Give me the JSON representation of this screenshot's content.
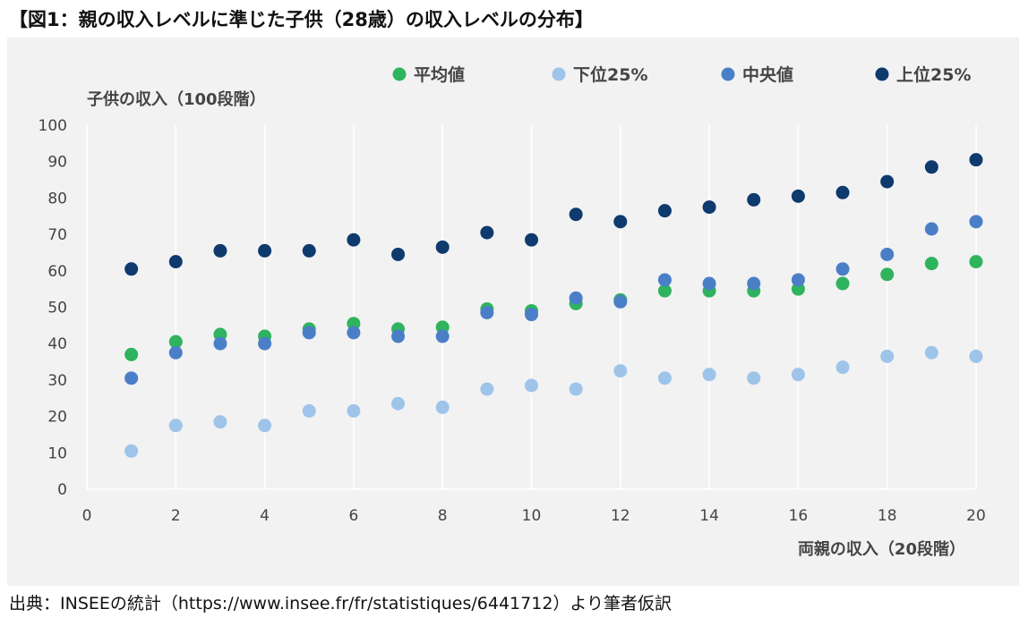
{
  "figure_title": "【図1：親の収入レベルに準じた子供（28歳）の収入レベルの分布】",
  "source": "出典：INSEEの統計（https://www.insee.fr/fr/statistiques/6441712）より筆者仮訳",
  "colors": {
    "mean": "#2fb35e",
    "p25": "#9ec4ea",
    "median": "#4a7fc8",
    "p75": "#0e3a6e",
    "panel_bg": "#f2f2f2",
    "grid": "#ffffff",
    "text": "#444444"
  },
  "chart_data": {
    "type": "scatter",
    "xlabel": "両親の収入（20段階）",
    "ylabel": "子供の収入（100段階）",
    "xlim": [
      0,
      20
    ],
    "ylim": [
      0,
      100
    ],
    "xticks": [
      0,
      2,
      4,
      6,
      8,
      10,
      12,
      14,
      16,
      18,
      20
    ],
    "yticks": [
      0,
      10,
      20,
      30,
      40,
      50,
      60,
      70,
      80,
      90,
      100
    ],
    "grid": "vertical",
    "legend_position": "top",
    "x": [
      1,
      2,
      3,
      4,
      5,
      6,
      7,
      8,
      9,
      10,
      11,
      12,
      13,
      14,
      15,
      16,
      17,
      18,
      19,
      20
    ],
    "series": [
      {
        "key": "mean",
        "name": "平均値",
        "values": [
          37,
          40.5,
          42.5,
          42,
          44,
          45.5,
          44,
          44.5,
          49.5,
          49,
          51,
          52,
          54.5,
          54.5,
          54.5,
          55,
          56.5,
          59,
          62,
          62.5
        ]
      },
      {
        "key": "p25",
        "name": "下位25%",
        "values": [
          10.5,
          17.5,
          18.5,
          17.5,
          21.5,
          21.5,
          23.5,
          22.5,
          27.5,
          28.5,
          27.5,
          32.5,
          30.5,
          31.5,
          30.5,
          31.5,
          33.5,
          36.5,
          37.5,
          36.5
        ]
      },
      {
        "key": "median",
        "name": "中央値",
        "values": [
          30.5,
          37.5,
          40,
          40,
          43,
          43,
          42,
          42,
          48.5,
          48,
          52.5,
          51.5,
          57.5,
          56.5,
          56.5,
          57.5,
          60.5,
          64.5,
          71.5,
          73.5
        ]
      },
      {
        "key": "p75",
        "name": "上位25%",
        "values": [
          60.5,
          62.5,
          65.5,
          65.5,
          65.5,
          68.5,
          64.5,
          66.5,
          70.5,
          68.5,
          75.5,
          73.5,
          76.5,
          77.5,
          79.5,
          80.5,
          81.5,
          84.5,
          88.5,
          90.5
        ]
      }
    ]
  }
}
